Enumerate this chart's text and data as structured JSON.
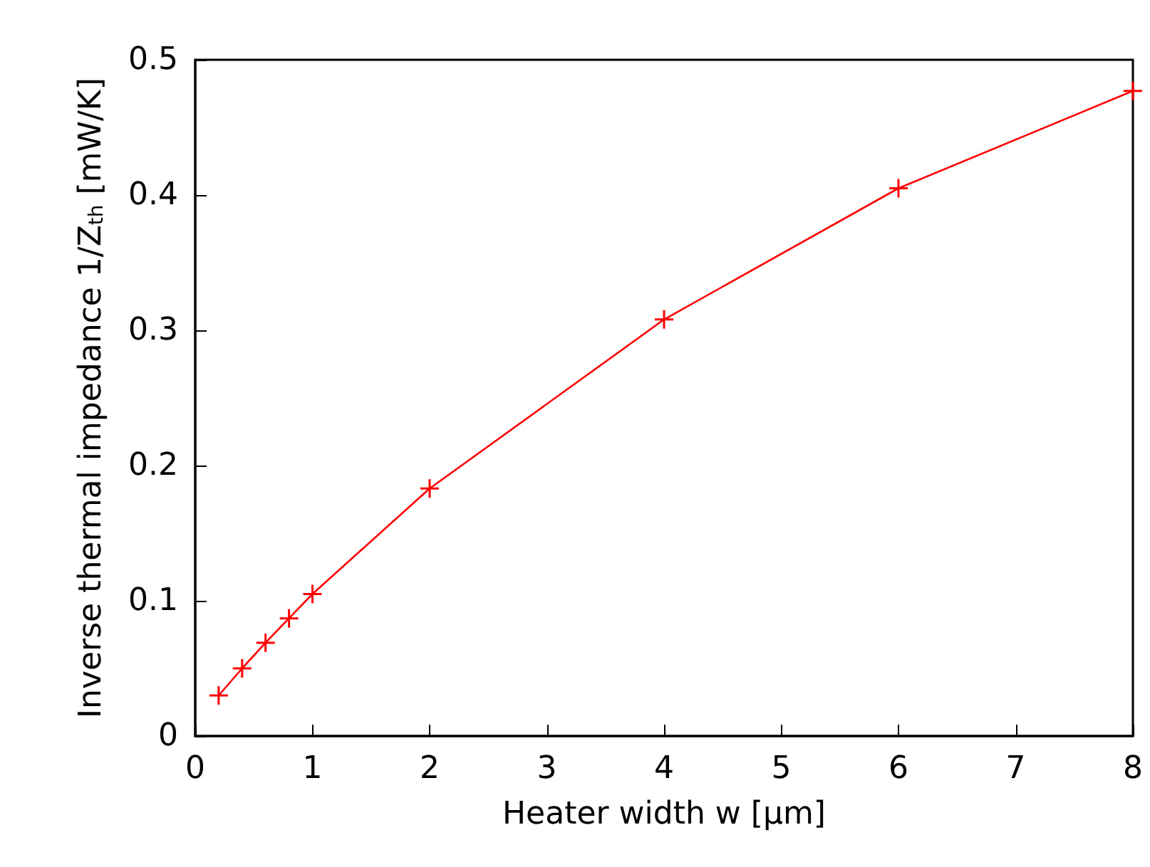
{
  "chart_data": {
    "type": "line",
    "xlabel": "Heater width w [μm]",
    "ylabel": "Inverse thermal impedance 1/Z$_{th}$ [mW/K]",
    "x": [
      0.2,
      0.4,
      0.6,
      0.8,
      1,
      2,
      4,
      6,
      8
    ],
    "series": [
      {
        "color": "#ff0000",
        "values": [
          0.03,
          0.05,
          0.069,
          0.087,
          0.105,
          0.183,
          0.308,
          0.405,
          0.477
        ]
      }
    ],
    "xlim": [
      0,
      8
    ],
    "xticks": [
      0,
      1,
      2,
      3,
      4,
      5,
      6,
      7,
      8
    ],
    "ylim": [
      0,
      0.5
    ],
    "yticks": [
      0,
      0.1,
      0.2,
      0.3,
      0.4,
      0.5
    ],
    "grid": false,
    "marker": "cross",
    "line_style": "solid"
  }
}
